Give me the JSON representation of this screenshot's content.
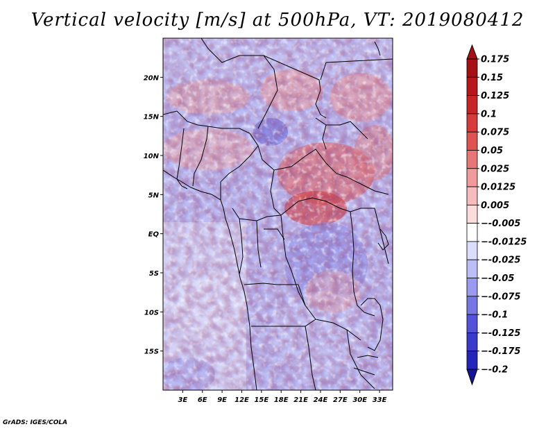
{
  "title": "Vertical velocity [m/s] at 500hPa, VT: 2019080412",
  "credit": "GrADS: IGES/COLA",
  "map": {
    "lon_range": [
      0,
      35
    ],
    "lat_range": [
      -20,
      25
    ],
    "lat_ticks": [
      {
        "value": 20,
        "label": "20N"
      },
      {
        "value": 15,
        "label": "15N"
      },
      {
        "value": 10,
        "label": "10N"
      },
      {
        "value": 5,
        "label": "5N"
      },
      {
        "value": 0,
        "label": "EQ"
      },
      {
        "value": -5,
        "label": "5S"
      },
      {
        "value": -10,
        "label": "10S"
      },
      {
        "value": -15,
        "label": "15S"
      }
    ],
    "lon_ticks": [
      {
        "value": 3,
        "label": "3E"
      },
      {
        "value": 6,
        "label": "6E"
      },
      {
        "value": 9,
        "label": "9E"
      },
      {
        "value": 12,
        "label": "12E"
      },
      {
        "value": 15,
        "label": "15E"
      },
      {
        "value": 18,
        "label": "18E"
      },
      {
        "value": 21,
        "label": "21E"
      },
      {
        "value": 24,
        "label": "24E"
      },
      {
        "value": 27,
        "label": "27E"
      },
      {
        "value": 30,
        "label": "30E"
      },
      {
        "value": 33,
        "label": "33E"
      }
    ]
  },
  "colorbar": {
    "levels": [
      {
        "label": "0.175",
        "color": "#a50f15"
      },
      {
        "label": "0.15",
        "color": "#b8161c"
      },
      {
        "label": "0.125",
        "color": "#c82428"
      },
      {
        "label": "0.1",
        "color": "#d63a3a"
      },
      {
        "label": "0.075",
        "color": "#e05252"
      },
      {
        "label": "0.05",
        "color": "#e97676"
      },
      {
        "label": "0.025",
        "color": "#f09a9a"
      },
      {
        "label": "0.0125",
        "color": "#f6bcbc"
      },
      {
        "label": "0.005",
        "color": "#fbdcdc"
      },
      {
        "label": "−-0.005",
        "color": "#ffffff"
      },
      {
        "label": "−-0.0125",
        "color": "#dcdcfb"
      },
      {
        "label": "−-0.025",
        "color": "#bcbcf6"
      },
      {
        "label": "−-0.05",
        "color": "#9a9af0"
      },
      {
        "label": "−-0.075",
        "color": "#7676e6"
      },
      {
        "label": "−-0.1",
        "color": "#5252dc"
      },
      {
        "label": "−-0.125",
        "color": "#3a3acf"
      },
      {
        "label": "−-0.175",
        "color": "#2424bd"
      },
      {
        "label": "−-0.2",
        "color": "#1414a8"
      }
    ],
    "top_arrow_color": "#a50f15",
    "bottom_arrow_color": "#14149a"
  }
}
